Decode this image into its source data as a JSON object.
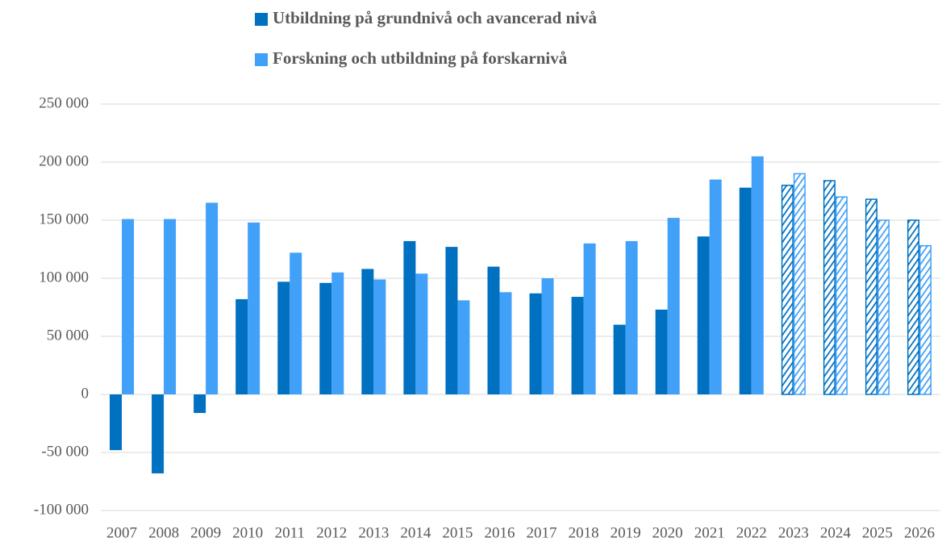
{
  "chart_data": {
    "type": "bar",
    "categories": [
      "2007",
      "2008",
      "2009",
      "2010",
      "2011",
      "2012",
      "2013",
      "2014",
      "2015",
      "2016",
      "2017",
      "2018",
      "2019",
      "2020",
      "2021",
      "2022",
      "2023",
      "2024",
      "2025",
      "2026"
    ],
    "series": [
      {
        "name": "Utbildning på grundnivå och avancerad nivå",
        "color": "#0070c0",
        "values": [
          -48000,
          -68000,
          -16000,
          82000,
          97000,
          96000,
          108000,
          132000,
          127000,
          110000,
          87000,
          84000,
          60000,
          73000,
          136000,
          178000,
          180000,
          184000,
          168000,
          150000
        ]
      },
      {
        "name": "Forskning och utbildning på forskarnivå",
        "color": "#41a0f8",
        "values": [
          151000,
          151000,
          165000,
          148000,
          122000,
          105000,
          99000,
          104000,
          81000,
          88000,
          100000,
          130000,
          132000,
          152000,
          185000,
          205000,
          190000,
          170000,
          150000,
          128000
        ]
      }
    ],
    "hatched": [
      false,
      false,
      false,
      false,
      false,
      false,
      false,
      false,
      false,
      false,
      false,
      false,
      false,
      false,
      false,
      false,
      true,
      true,
      true,
      true
    ],
    "ylim": [
      -100000,
      250000
    ],
    "yticks": [
      {
        "value": -100000,
        "label": "-100 000"
      },
      {
        "value": -50000,
        "label": "-50 000"
      },
      0,
      {
        "value": 50000,
        "label": "50 000"
      },
      {
        "value": 100000,
        "label": "100 000"
      },
      {
        "value": 150000,
        "label": "150 000"
      },
      {
        "value": 200000,
        "label": "200 000"
      },
      {
        "value": 250000,
        "label": "250 000"
      }
    ],
    "grid": true,
    "legend": "top"
  }
}
